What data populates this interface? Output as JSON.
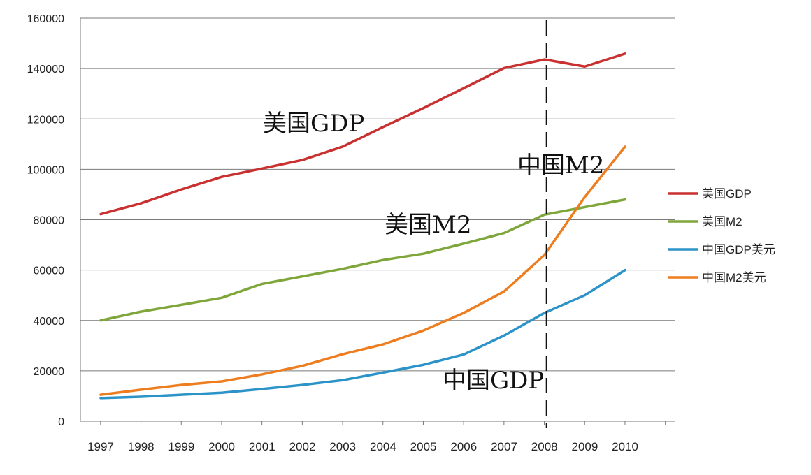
{
  "chart_data": {
    "type": "line",
    "title": "",
    "xlabel": "",
    "ylabel": "",
    "x": [
      "1997",
      "1998",
      "1999",
      "2000",
      "2001",
      "2002",
      "2003",
      "2004",
      "2005",
      "2006",
      "2007",
      "2008",
      "2009",
      "2010"
    ],
    "ylim": [
      0,
      160000
    ],
    "yticks": [
      0,
      20000,
      40000,
      60000,
      80000,
      100000,
      120000,
      140000,
      160000
    ],
    "grid": true,
    "legend_position": "right",
    "series": [
      {
        "name": "美国GDP",
        "color": "#c8312f",
        "values": [
          82200,
          86500,
          92000,
          97000,
          100300,
          103700,
          109000,
          116800,
          124300,
          132200,
          140200,
          143600,
          140800,
          145900
        ]
      },
      {
        "name": "美国M2",
        "color": "#7fa63a",
        "values": [
          40000,
          43500,
          46200,
          49000,
          54500,
          57500,
          60500,
          64000,
          66500,
          70500,
          74700,
          82000,
          85000,
          88000
        ]
      },
      {
        "name": "中国GDP美元",
        "color": "#2b93c7",
        "values": [
          9200,
          9700,
          10500,
          11300,
          12800,
          14400,
          16300,
          19300,
          22400,
          26500,
          34000,
          43000,
          50000,
          60000
        ]
      },
      {
        "name": "中国M2美元",
        "color": "#ee7d1f",
        "values": [
          10500,
          12500,
          14400,
          15800,
          18600,
          22000,
          26600,
          30500,
          36000,
          43000,
          51500,
          66000,
          89000,
          109000
        ]
      }
    ],
    "annotations": [
      {
        "text": "美国GDP"
      },
      {
        "text": "中国M2"
      },
      {
        "text": "美国M2"
      },
      {
        "text": "中国GDP"
      }
    ],
    "reference_line": {
      "x": "2008",
      "style": "dashed"
    }
  }
}
